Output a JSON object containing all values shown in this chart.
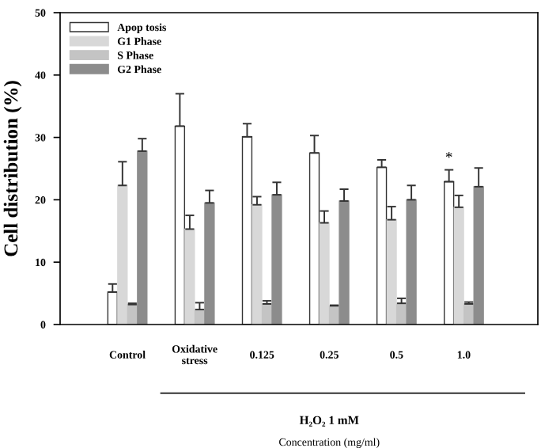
{
  "chart_data": {
    "type": "bar",
    "ylabel": "Cell distribution (%)",
    "categories": [
      "Control",
      "Oxidative\nstress",
      "0.125",
      "0.25",
      "0.5",
      "1.0"
    ],
    "series": [
      {
        "name": "Apop tosis",
        "color": "#ffffff",
        "values": [
          5.2,
          31.8,
          30.1,
          27.5,
          25.2,
          22.9
        ],
        "errors": [
          1.3,
          5.2,
          2.1,
          2.8,
          1.2,
          1.9
        ]
      },
      {
        "name": "G1 Phase",
        "color": "#d8d8d8",
        "values": [
          22.3,
          15.3,
          19.2,
          16.3,
          16.8,
          18.8
        ],
        "errors": [
          3.8,
          2.2,
          1.3,
          1.9,
          2.1,
          1.9
        ]
      },
      {
        "name": "S Phase",
        "color": "#c4c4c4",
        "values": [
          3.2,
          2.4,
          3.3,
          3.0,
          3.4,
          3.3
        ],
        "errors": [
          0.2,
          1.1,
          0.5,
          0.1,
          0.8,
          0.3
        ]
      },
      {
        "name": "G2 Phase",
        "color": "#8c8c8c",
        "values": [
          27.8,
          19.5,
          20.8,
          19.8,
          20.0,
          22.1
        ],
        "errors": [
          2.0,
          2.0,
          2.0,
          1.9,
          2.3,
          3.0
        ]
      }
    ],
    "annotations": [
      "*",
      "H₂O₂ 1 mM",
      "Concentration (mg/ml)"
    ],
    "ylim": [
      0,
      50
    ],
    "yticks": [
      0,
      10,
      20,
      30,
      40,
      50
    ],
    "grid": false,
    "legend": "top left"
  }
}
